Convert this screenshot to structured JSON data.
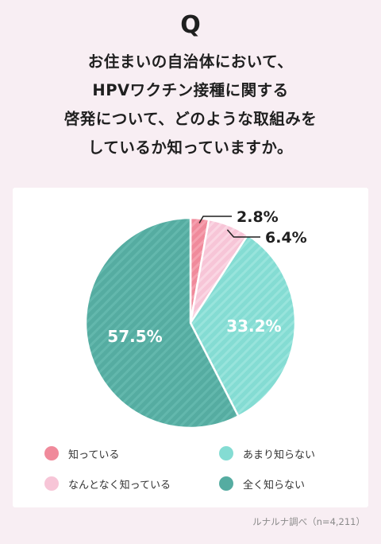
{
  "header": {
    "q_mark": "Q",
    "question_lines": [
      "お住まいの自治体において、",
      "HPVワクチン接種に関する",
      "啓発について、どのような取組みを",
      "しているか知っていますか。"
    ]
  },
  "chart_data": {
    "type": "pie",
    "title": "",
    "slices": [
      {
        "label": "知っている",
        "value": 2.8,
        "display": "2.8%",
        "color": "#f08a9b"
      },
      {
        "label": "なんとなく知っている",
        "value": 6.4,
        "display": "6.4%",
        "color": "#f7c5d7"
      },
      {
        "label": "あまり知らない",
        "value": 33.2,
        "display": "33.2%",
        "color": "#84dcd3"
      },
      {
        "label": "全く知らない",
        "value": 57.5,
        "display": "57.5%",
        "color": "#55aca1"
      }
    ],
    "legend_position": "bottom"
  },
  "source": "ルナルナ調べ（n=4,211）"
}
